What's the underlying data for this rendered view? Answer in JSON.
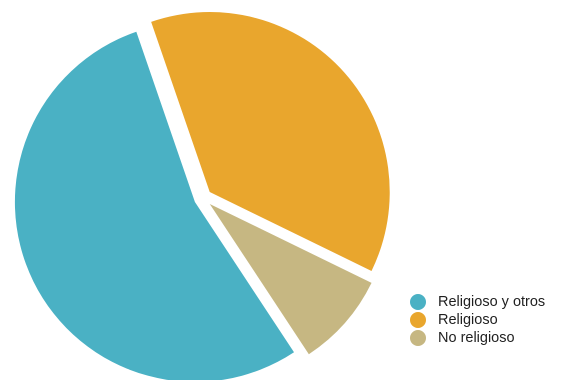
{
  "chart_data": {
    "type": "pie",
    "labels": [
      "Religioso",
      "No religioso",
      "Religioso y otros"
    ],
    "values": [
      37.5,
      8.5,
      54.0
    ],
    "colors": [
      "#E9A62D",
      "#C6B782",
      "#4AB1C4"
    ],
    "exploded": true,
    "legend": {
      "position": "bottom-right",
      "items": [
        {
          "label": "Religioso y otros",
          "color": "#4AB1C4"
        },
        {
          "label": "Religioso",
          "color": "#E9A62D"
        },
        {
          "label": "No religioso",
          "color": "#C6B782"
        }
      ]
    }
  }
}
